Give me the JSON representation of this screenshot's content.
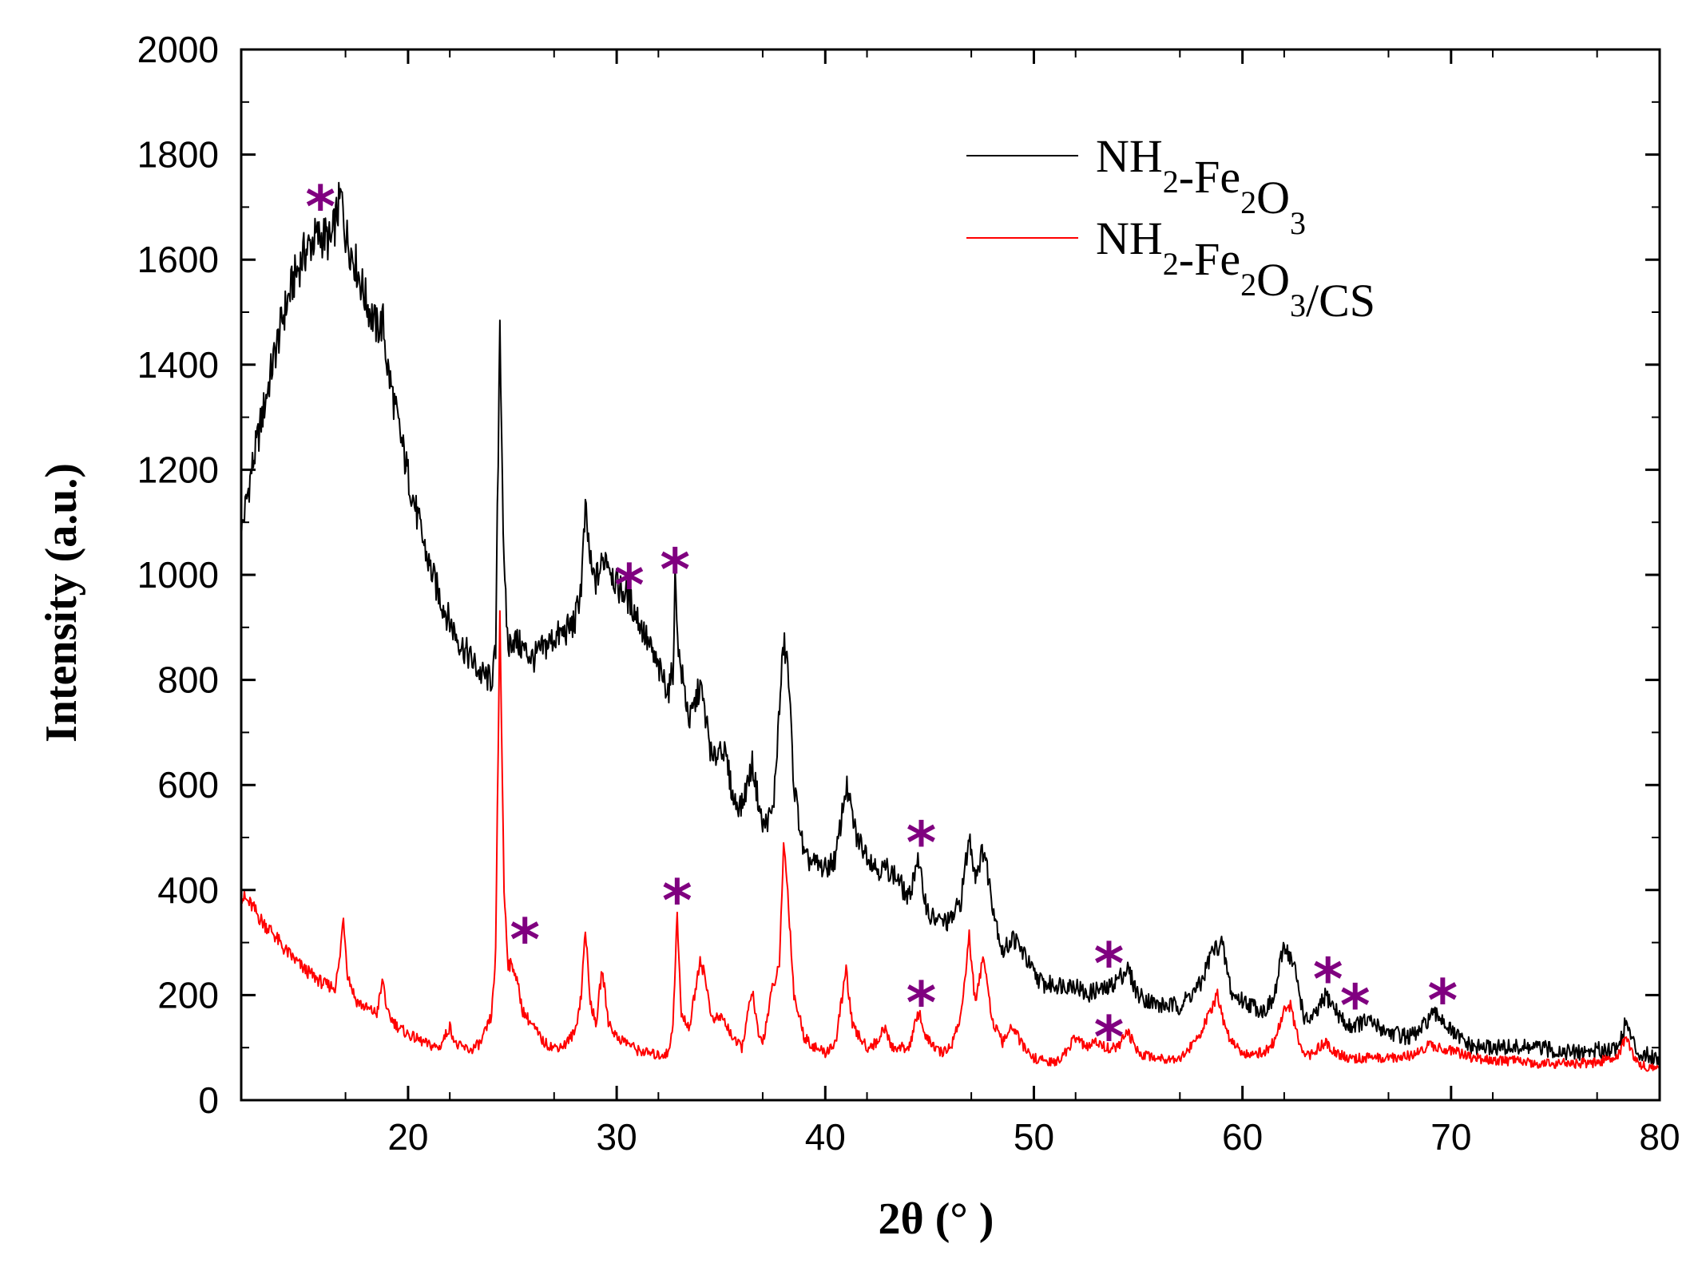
{
  "chart_data": {
    "type": "line",
    "title": "",
    "xlabel": "2θ (° )",
    "ylabel": "Intensity (a.u.)",
    "xlim": [
      12,
      80
    ],
    "ylim": [
      0,
      2000
    ],
    "xticks": [
      20,
      30,
      40,
      50,
      60,
      70,
      80
    ],
    "yticks": [
      0,
      200,
      400,
      600,
      800,
      1000,
      1200,
      1400,
      1600,
      1800,
      2000
    ],
    "legend_position": "top-right",
    "marker_color": "#800080",
    "series": [
      {
        "name": "NH2-Fe2O3",
        "legend_parts": [
          {
            "text": "NH",
            "sub": false
          },
          {
            "text": "2",
            "sub": true
          },
          {
            "text": "-Fe",
            "sub": false
          },
          {
            "text": "2",
            "sub": true
          },
          {
            "text": "O",
            "sub": false
          },
          {
            "text": "3",
            "sub": true
          }
        ],
        "color": "#000000",
        "points": [
          [
            12,
            1080
          ],
          [
            12.5,
            1200
          ],
          [
            13,
            1300
          ],
          [
            13.5,
            1400
          ],
          [
            14,
            1490
          ],
          [
            14.5,
            1560
          ],
          [
            15,
            1610
          ],
          [
            15.5,
            1640
          ],
          [
            16,
            1645
          ],
          [
            16.3,
            1630
          ],
          [
            16.6,
            1690
          ],
          [
            16.8,
            1720
          ],
          [
            17,
            1650
          ],
          [
            17.5,
            1590
          ],
          [
            18,
            1520
          ],
          [
            18.5,
            1470
          ],
          [
            18.8,
            1480
          ],
          [
            19,
            1400
          ],
          [
            19.5,
            1290
          ],
          [
            20,
            1190
          ],
          [
            20.5,
            1100
          ],
          [
            21,
            1020
          ],
          [
            21.5,
            960
          ],
          [
            22,
            910
          ],
          [
            22.5,
            870
          ],
          [
            23,
            840
          ],
          [
            23.5,
            810
          ],
          [
            24,
            800
          ],
          [
            24.2,
            850
          ],
          [
            24.4,
            1490
          ],
          [
            24.6,
            1000
          ],
          [
            24.8,
            860
          ],
          [
            25,
            880
          ],
          [
            25.5,
            860
          ],
          [
            26,
            840
          ],
          [
            26.5,
            860
          ],
          [
            27,
            880
          ],
          [
            27.5,
            890
          ],
          [
            28,
            910
          ],
          [
            28.3,
            980
          ],
          [
            28.5,
            1120
          ],
          [
            28.8,
            1000
          ],
          [
            29,
            990
          ],
          [
            29.5,
            1040
          ],
          [
            30,
            980
          ],
          [
            30.5,
            960
          ],
          [
            31,
            920
          ],
          [
            31.5,
            870
          ],
          [
            32,
            820
          ],
          [
            32.5,
            780
          ],
          [
            32.7,
            820
          ],
          [
            32.8,
            990
          ],
          [
            33,
            840
          ],
          [
            33.5,
            720
          ],
          [
            34,
            790
          ],
          [
            34.3,
            720
          ],
          [
            34.6,
            640
          ],
          [
            35,
            680
          ],
          [
            35.3,
            640
          ],
          [
            35.6,
            570
          ],
          [
            36,
            560
          ],
          [
            36.5,
            640
          ],
          [
            37,
            520
          ],
          [
            37.5,
            550
          ],
          [
            38,
            870
          ],
          [
            38.2,
            830
          ],
          [
            38.5,
            600
          ],
          [
            39,
            460
          ],
          [
            39.5,
            450
          ],
          [
            40,
            440
          ],
          [
            40.5,
            460
          ],
          [
            41,
            600
          ],
          [
            41.5,
            500
          ],
          [
            42,
            470
          ],
          [
            42.5,
            440
          ],
          [
            43,
            440
          ],
          [
            43.5,
            420
          ],
          [
            44,
            380
          ],
          [
            44.4,
            460
          ],
          [
            44.8,
            380
          ],
          [
            45,
            350
          ],
          [
            45.5,
            340
          ],
          [
            46,
            340
          ],
          [
            46.5,
            380
          ],
          [
            46.9,
            500
          ],
          [
            47.2,
            430
          ],
          [
            47.6,
            480
          ],
          [
            48,
            380
          ],
          [
            48.5,
            280
          ],
          [
            49,
            310
          ],
          [
            49.5,
            280
          ],
          [
            50,
            240
          ],
          [
            50.5,
            220
          ],
          [
            51,
            220
          ],
          [
            52,
            220
          ],
          [
            52.5,
            200
          ],
          [
            53,
            210
          ],
          [
            53.5,
            210
          ],
          [
            54,
            230
          ],
          [
            54.5,
            250
          ],
          [
            55,
            200
          ],
          [
            55.5,
            190
          ],
          [
            56,
            180
          ],
          [
            57,
            180
          ],
          [
            57.5,
            200
          ],
          [
            58,
            220
          ],
          [
            58.5,
            280
          ],
          [
            59,
            300
          ],
          [
            59.5,
            200
          ],
          [
            60,
            190
          ],
          [
            60.5,
            180
          ],
          [
            61,
            170
          ],
          [
            61.5,
            190
          ],
          [
            62,
            300
          ],
          [
            62.5,
            250
          ],
          [
            63,
            150
          ],
          [
            63.5,
            160
          ],
          [
            64,
            200
          ],
          [
            64.5,
            170
          ],
          [
            65,
            140
          ],
          [
            66,
            150
          ],
          [
            67,
            130
          ],
          [
            68,
            120
          ],
          [
            68.5,
            130
          ],
          [
            69,
            160
          ],
          [
            69.5,
            160
          ],
          [
            70,
            130
          ],
          [
            71,
            100
          ],
          [
            72,
            100
          ],
          [
            73,
            100
          ],
          [
            74,
            100
          ],
          [
            75,
            95
          ],
          [
            76,
            90
          ],
          [
            77,
            95
          ],
          [
            78,
            100
          ],
          [
            78.4,
            150
          ],
          [
            78.7,
            110
          ],
          [
            79,
            90
          ],
          [
            80,
            80
          ]
        ]
      },
      {
        "name": "NH2-Fe2O3/CS",
        "legend_parts": [
          {
            "text": "NH",
            "sub": false
          },
          {
            "text": "2",
            "sub": true
          },
          {
            "text": "-Fe",
            "sub": false
          },
          {
            "text": "2",
            "sub": true
          },
          {
            "text": "O",
            "sub": false
          },
          {
            "text": "3",
            "sub": true
          },
          {
            "text": "/CS",
            "sub": false
          }
        ],
        "color": "#ff0000",
        "points": [
          [
            12,
            390
          ],
          [
            12.5,
            370
          ],
          [
            13,
            340
          ],
          [
            13.5,
            320
          ],
          [
            14,
            290
          ],
          [
            14.5,
            270
          ],
          [
            15,
            250
          ],
          [
            15.5,
            235
          ],
          [
            16,
            220
          ],
          [
            16.5,
            215
          ],
          [
            16.7,
            260
          ],
          [
            16.9,
            350
          ],
          [
            17.1,
            240
          ],
          [
            17.5,
            190
          ],
          [
            18,
            175
          ],
          [
            18.5,
            165
          ],
          [
            18.8,
            230
          ],
          [
            19,
            165
          ],
          [
            19.5,
            140
          ],
          [
            20,
            125
          ],
          [
            20.5,
            115
          ],
          [
            21,
            105
          ],
          [
            21.5,
            100
          ],
          [
            22,
            140
          ],
          [
            22.3,
            105
          ],
          [
            23,
            95
          ],
          [
            23.5,
            110
          ],
          [
            24,
            160
          ],
          [
            24.2,
            280
          ],
          [
            24.4,
            930
          ],
          [
            24.6,
            400
          ],
          [
            24.8,
            260
          ],
          [
            25.1,
            250
          ],
          [
            25.5,
            170
          ],
          [
            26,
            140
          ],
          [
            26.5,
            110
          ],
          [
            27,
            100
          ],
          [
            27.5,
            105
          ],
          [
            28,
            130
          ],
          [
            28.3,
            200
          ],
          [
            28.5,
            330
          ],
          [
            28.7,
            200
          ],
          [
            29,
            140
          ],
          [
            29.3,
            250
          ],
          [
            29.6,
            150
          ],
          [
            30,
            120
          ],
          [
            30.5,
            110
          ],
          [
            31,
            95
          ],
          [
            31.5,
            90
          ],
          [
            32,
            85
          ],
          [
            32.5,
            90
          ],
          [
            32.7,
            150
          ],
          [
            32.9,
            350
          ],
          [
            33.1,
            160
          ],
          [
            33.5,
            140
          ],
          [
            34,
            270
          ],
          [
            34.2,
            240
          ],
          [
            34.6,
            150
          ],
          [
            35,
            160
          ],
          [
            35.3,
            140
          ],
          [
            35.7,
            110
          ],
          [
            36,
            100
          ],
          [
            36.5,
            210
          ],
          [
            36.8,
            120
          ],
          [
            37,
            110
          ],
          [
            37.5,
            220
          ],
          [
            37.8,
            250
          ],
          [
            38,
            490
          ],
          [
            38.2,
            400
          ],
          [
            38.5,
            200
          ],
          [
            39,
            120
          ],
          [
            39.5,
            100
          ],
          [
            40,
            90
          ],
          [
            40.5,
            110
          ],
          [
            41,
            250
          ],
          [
            41.3,
            140
          ],
          [
            42,
            100
          ],
          [
            42.5,
            110
          ],
          [
            42.8,
            140
          ],
          [
            43.2,
            100
          ],
          [
            44,
            100
          ],
          [
            44.5,
            170
          ],
          [
            44.8,
            120
          ],
          [
            45.5,
            90
          ],
          [
            46,
            100
          ],
          [
            46.5,
            160
          ],
          [
            46.9,
            310
          ],
          [
            47.2,
            180
          ],
          [
            47.6,
            280
          ],
          [
            48,
            150
          ],
          [
            48.5,
            110
          ],
          [
            49,
            140
          ],
          [
            49.5,
            100
          ],
          [
            50,
            80
          ],
          [
            51,
            70
          ],
          [
            51.5,
            90
          ],
          [
            52,
            120
          ],
          [
            52.5,
            100
          ],
          [
            53,
            110
          ],
          [
            53.5,
            100
          ],
          [
            54,
            100
          ],
          [
            54.5,
            130
          ],
          [
            55,
            90
          ],
          [
            56,
            80
          ],
          [
            57,
            80
          ],
          [
            57.5,
            100
          ],
          [
            58,
            130
          ],
          [
            58.5,
            170
          ],
          [
            58.8,
            200
          ],
          [
            59.2,
            130
          ],
          [
            60,
            90
          ],
          [
            61,
            90
          ],
          [
            61.5,
            110
          ],
          [
            62,
            170
          ],
          [
            62.3,
            180
          ],
          [
            62.7,
            110
          ],
          [
            63,
            80
          ],
          [
            64,
            110
          ],
          [
            64.5,
            90
          ],
          [
            65,
            80
          ],
          [
            66,
            80
          ],
          [
            67,
            80
          ],
          [
            68,
            85
          ],
          [
            69,
            105
          ],
          [
            70,
            95
          ],
          [
            71,
            80
          ],
          [
            72,
            75
          ],
          [
            73,
            75
          ],
          [
            74,
            70
          ],
          [
            75,
            70
          ],
          [
            76,
            70
          ],
          [
            77,
            72
          ],
          [
            78,
            85
          ],
          [
            78.4,
            120
          ],
          [
            78.7,
            90
          ],
          [
            79,
            70
          ],
          [
            80,
            55
          ]
        ]
      }
    ],
    "annotations": [
      {
        "text": "*",
        "x": 15.8,
        "y": 1720
      },
      {
        "text": "*",
        "x": 30.6,
        "y": 1000
      },
      {
        "text": "*",
        "x": 32.8,
        "y": 1030
      },
      {
        "text": "*",
        "x": 25.6,
        "y": 325
      },
      {
        "text": "*",
        "x": 32.9,
        "y": 400
      },
      {
        "text": "*",
        "x": 44.6,
        "y": 510
      },
      {
        "text": "*",
        "x": 44.6,
        "y": 205
      },
      {
        "text": "*",
        "x": 53.6,
        "y": 280
      },
      {
        "text": "*",
        "x": 53.6,
        "y": 140
      },
      {
        "text": "*",
        "x": 64.1,
        "y": 250
      },
      {
        "text": "*",
        "x": 65.4,
        "y": 200
      },
      {
        "text": "*",
        "x": 69.6,
        "y": 210
      }
    ]
  }
}
